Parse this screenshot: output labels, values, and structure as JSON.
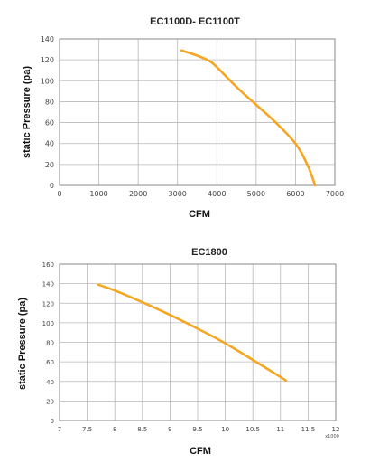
{
  "chart_data": [
    {
      "type": "line",
      "title": "EC1100D- EC1100T",
      "xlabel": "CFM",
      "ylabel": "static Pressure (pa)",
      "xlim": [
        0,
        7000
      ],
      "ylim": [
        0,
        140
      ],
      "xticks": [
        0,
        1000,
        2000,
        3000,
        4000,
        5000,
        6000,
        7000
      ],
      "yticks": [
        0,
        20,
        40,
        60,
        80,
        100,
        120,
        140
      ],
      "x_tick_labels": [
        "0",
        "1000",
        "2000",
        "3000",
        "4000",
        "5000",
        "6000",
        "7000"
      ],
      "y_tick_labels": [
        "0",
        "20",
        "40",
        "60",
        "80",
        "100",
        "120",
        "140"
      ],
      "grid": true,
      "color": "#f5a623",
      "series": [
        {
          "x": [
            3100,
            3500,
            3800,
            4000,
            4500,
            5000,
            5500,
            6000,
            6300,
            6500
          ],
          "y": [
            129,
            124,
            119,
            113,
            94,
            77,
            60,
            40,
            20,
            0
          ]
        }
      ]
    },
    {
      "type": "line",
      "title": "EC1800",
      "xlabel": "CFM",
      "ylabel": "static Pressure (pa)",
      "x_multiplier": "x1000",
      "xlim": [
        7,
        12
      ],
      "ylim": [
        0,
        160
      ],
      "xticks": [
        7,
        7.5,
        8,
        8.5,
        9,
        9.5,
        10,
        10.5,
        11,
        11.5,
        12
      ],
      "yticks": [
        0,
        20,
        40,
        60,
        80,
        100,
        120,
        140,
        160
      ],
      "x_tick_labels": [
        "7",
        "7.5",
        "8",
        "8.5",
        "9",
        "9.5",
        "10",
        "10.5",
        "11",
        "11.5",
        "12"
      ],
      "y_tick_labels": [
        "0",
        "20",
        "40",
        "60",
        "80",
        "100",
        "120",
        "140",
        "160"
      ],
      "grid": true,
      "color": "#f5a623",
      "series": [
        {
          "x": [
            7.7,
            8.0,
            8.5,
            9.0,
            9.5,
            10.0,
            10.5,
            11.1
          ],
          "y": [
            139,
            133,
            121,
            108,
            94,
            79,
            62,
            41
          ]
        }
      ]
    }
  ]
}
